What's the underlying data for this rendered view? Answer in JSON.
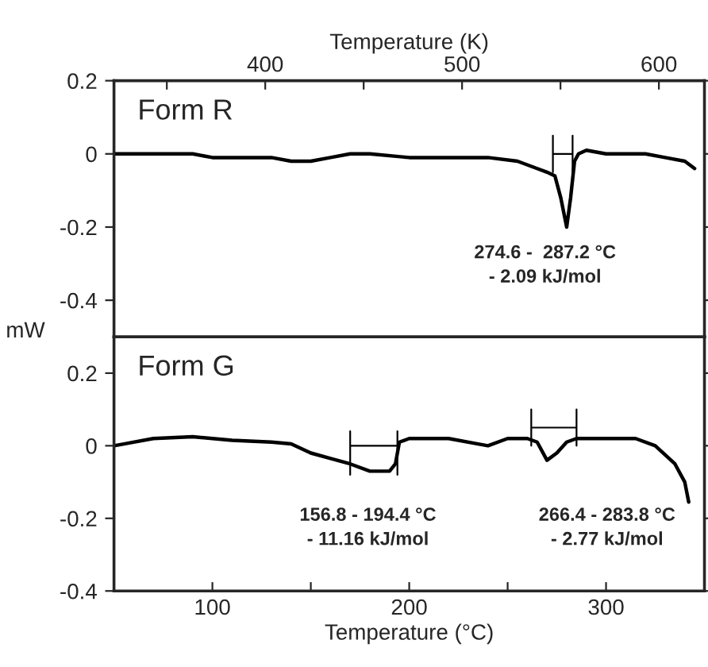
{
  "chart_data": [
    {
      "type": "line",
      "title": "Form R",
      "x2label": "Temperature (K)",
      "xlim": [
        50,
        350
      ],
      "x2lim": [
        323.15,
        623.15
      ],
      "x2ticks": [
        400,
        500,
        600,
        {
          "value": 350,
          "label": null
        },
        {
          "value": 450,
          "label": null
        },
        {
          "value": 550,
          "label": null
        }
      ],
      "ylim": [
        -0.5,
        0.2
      ],
      "yticks": [
        {
          "value": 0.2,
          "label": "0.2"
        },
        0,
        {
          "value": -0.2,
          "label": "-0.2"
        },
        {
          "value": -0.4,
          "label": "-0.4"
        }
      ],
      "tick_labels": "y",
      "grid": false,
      "legend": false,
      "marker": "none",
      "line_style": "solid",
      "series": [
        {
          "color": "#000000",
          "x": [
            50,
            60,
            70,
            80,
            90,
            100,
            115,
            130,
            140,
            150,
            160,
            170,
            180,
            200,
            220,
            240,
            255,
            265,
            270,
            274,
            277,
            280,
            282,
            284,
            286,
            290,
            300,
            310,
            320,
            330,
            340,
            345
          ],
          "values": [
            0.0,
            0.0,
            0.0,
            0.0,
            0.0,
            -0.01,
            -0.01,
            -0.01,
            -0.02,
            -0.02,
            -0.01,
            0.0,
            0.0,
            -0.01,
            -0.01,
            -0.01,
            -0.02,
            -0.04,
            -0.05,
            -0.06,
            -0.12,
            -0.2,
            -0.12,
            -0.02,
            0.0,
            0.01,
            0.0,
            0.0,
            0.0,
            -0.01,
            -0.02,
            -0.04
          ]
        },
        {
          "color": "#000000",
          "x": [
            273,
            273,
            273,
            283,
            283,
            283
          ],
          "values": [
            0.05,
            -0.05,
            0,
            0,
            0.05,
            -0.05
          ]
        }
      ],
      "annotations": [
        "274.6 -  287.2 °C\n- 2.09 kJ/mol"
      ]
    },
    {
      "type": "line",
      "title": "Form G",
      "xlabel": "Temperature (°C)",
      "ylabel": "mW",
      "xlim": [
        50,
        350
      ],
      "xticks": [
        100,
        200,
        300,
        {
          "value": 150,
          "label": null
        },
        {
          "value": 250,
          "label": null
        }
      ],
      "ylim": [
        -0.4,
        0.3
      ],
      "yticks": [
        {
          "value": 0.2,
          "label": "0.2"
        },
        0,
        {
          "value": -0.2,
          "label": "-0.2"
        },
        {
          "value": -0.4,
          "label": "-0.4"
        }
      ],
      "grid": false,
      "legend": false,
      "marker": "none",
      "line_style": "solid",
      "series": [
        {
          "color": "#000000",
          "x": [
            50,
            55,
            70,
            90,
            100,
            110,
            130,
            140,
            150,
            160,
            170,
            180,
            190,
            193,
            195,
            200,
            220,
            235,
            240,
            250,
            260,
            265,
            270,
            275,
            280,
            285,
            300,
            315,
            325,
            335,
            340,
            342
          ],
          "values": [
            0.0,
            0.005,
            0.02,
            0.025,
            0.02,
            0.015,
            0.01,
            0.005,
            -0.02,
            -0.035,
            -0.05,
            -0.07,
            -0.07,
            -0.05,
            0.01,
            0.02,
            0.02,
            0.005,
            0.0,
            0.02,
            0.02,
            0.01,
            -0.04,
            -0.02,
            0.01,
            0.02,
            0.02,
            0.02,
            0.0,
            -0.05,
            -0.1,
            -0.155
          ]
        },
        {
          "color": "#000000",
          "x": [
            170,
            170,
            170,
            194,
            194,
            194
          ],
          "values": [
            0.04,
            -0.08,
            0,
            0,
            0.04,
            -0.08
          ]
        },
        {
          "color": "#000000",
          "x": [
            262,
            262,
            262,
            285,
            285,
            285
          ],
          "values": [
            0.1,
            0,
            0.05,
            0.05,
            0.1,
            0
          ]
        }
      ],
      "annotations": [
        "156.8 - 194.4 °C\n- 11.16 kJ/mol",
        "266.4 - 283.8 °C\n- 2.77 kJ/mol"
      ]
    }
  ]
}
